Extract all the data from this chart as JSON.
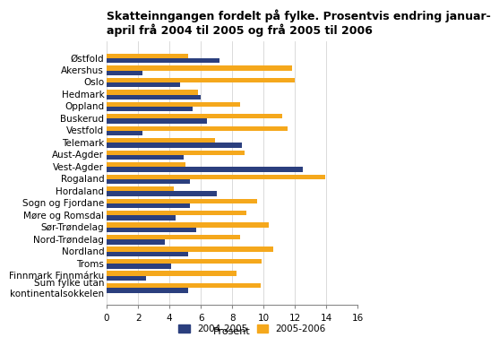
{
  "title": "Skatteinngangen fordelt på fylke. Prosentvis endring januar-\napril frå 2004 til 2005 og frå 2005 til 2006",
  "categories": [
    "Østfold",
    "Akershus",
    "Oslo",
    "Hedmark",
    "Oppland",
    "Buskerud",
    "Vestfold",
    "Telemark",
    "Aust-Agder",
    "Vest-Agder",
    "Rogaland",
    "Hordaland",
    "Sogn og Fjordane",
    "Møre og Romsdal",
    "Sør-Trøndelag",
    "Nord-Trøndelag",
    "Nordland",
    "Troms",
    "Finnmark Finnmárku",
    "Sum fylke utan\nkontinentalsokkelen"
  ],
  "values_2004_2005": [
    7.2,
    2.3,
    4.7,
    6.0,
    5.5,
    6.4,
    2.3,
    8.6,
    4.9,
    12.5,
    5.3,
    7.0,
    5.3,
    4.4,
    5.7,
    3.7,
    5.2,
    4.1,
    2.5,
    5.2
  ],
  "values_2005_2006": [
    5.2,
    11.8,
    12.0,
    5.8,
    8.5,
    11.2,
    11.5,
    6.9,
    8.8,
    5.0,
    13.9,
    4.3,
    9.6,
    8.9,
    10.3,
    8.5,
    10.6,
    9.9,
    8.3,
    9.8
  ],
  "color_2004_2005": "#2b3f7e",
  "color_2005_2006": "#f5a81c",
  "xlabel": "Prosent",
  "xlim": [
    0,
    16
  ],
  "xticks": [
    0,
    2,
    4,
    6,
    8,
    10,
    12,
    14,
    16
  ],
  "legend_label_1": "2004-2005",
  "legend_label_2": "2005-2006",
  "title_fontsize": 9,
  "axis_fontsize": 8,
  "tick_fontsize": 7.5
}
